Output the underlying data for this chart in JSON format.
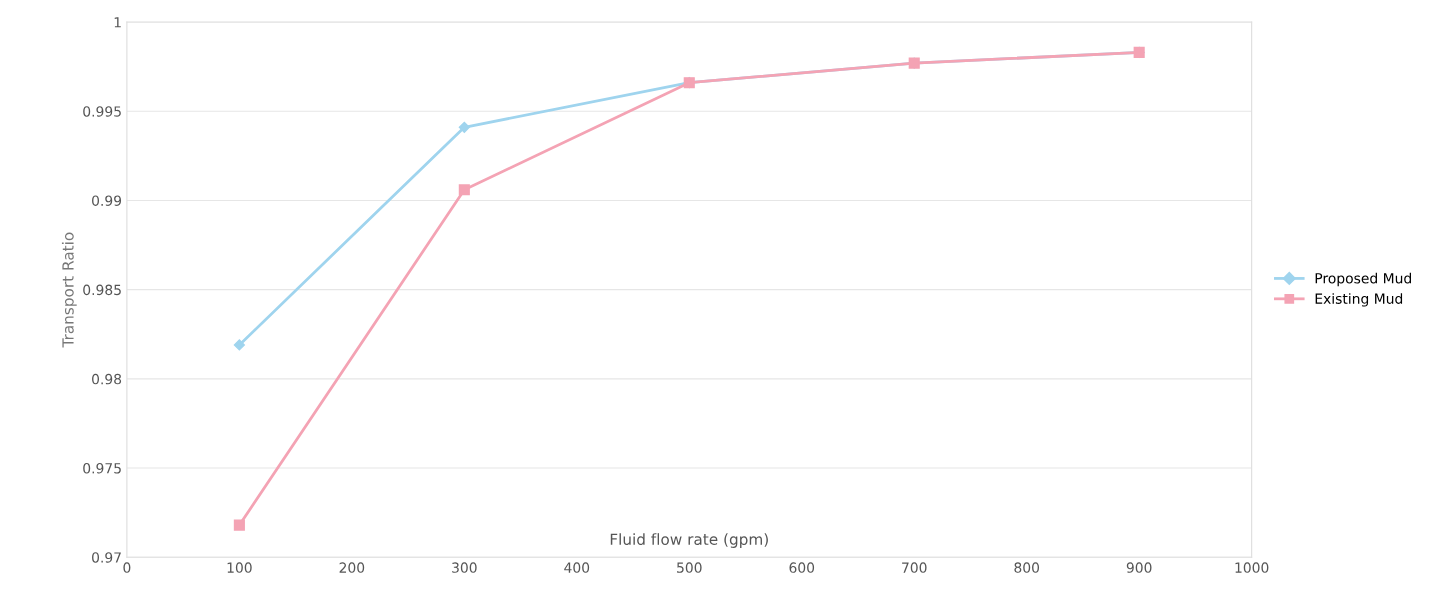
{
  "chart_data": {
    "type": "line",
    "xlabel": "Fluid flow rate (gpm)",
    "ylabel": "Transport Ratio",
    "x": [
      100,
      300,
      500,
      700,
      900
    ],
    "series": [
      {
        "name": "Proposed Mud",
        "color": "#9fd4ee",
        "marker": "diamond",
        "values": [
          0.9819,
          0.9941,
          0.9966,
          0.9977,
          0.9983
        ]
      },
      {
        "name": "Existing Mud",
        "color": "#f4a3b4",
        "marker": "square",
        "values": [
          0.9718,
          0.9906,
          0.9966,
          0.9977,
          0.9983
        ]
      }
    ],
    "xlim": [
      0,
      1000
    ],
    "xticks": [
      0,
      100,
      200,
      300,
      400,
      500,
      600,
      700,
      800,
      900,
      1000
    ],
    "ylim": [
      0.97,
      1
    ],
    "yticks": [
      0.97,
      0.975,
      0.98,
      0.985,
      0.99,
      0.995,
      1
    ],
    "grid": "y",
    "legend": "right",
    "line_style": "solid"
  }
}
